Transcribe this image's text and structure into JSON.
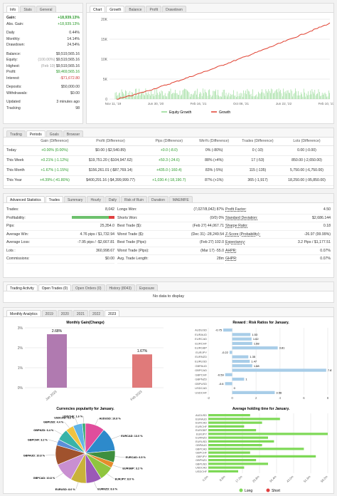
{
  "info": {
    "tabs": [
      "Info",
      "Stats",
      "General"
    ],
    "gain_label": "Gain:",
    "gain": "+18,939.13%",
    "abs_label": "Abs. Gain:",
    "abs": "+18,939.13%",
    "daily_label": "Daily",
    "daily": "0.44%",
    "monthly_label": "Monthly:",
    "monthly": "14.14%",
    "drawdown_label": "Drawdown:",
    "drawdown": "24.54%",
    "balance_label": "Balance:",
    "balance": "$9,519,565.16",
    "equity_label": "Equity:",
    "equity_note": "(100.00%)",
    "equity": "$9,519,565.16",
    "highest_label": "Highest:",
    "highest_note": "(Feb 10)",
    "highest": "$9,519,565.16",
    "profit_label": "Profit:",
    "profit": "$9,469,565.16",
    "interest_label": "Interest:",
    "interest": "-$71,672.80",
    "deposits_label": "Deposits:",
    "deposits": "$50,000.00",
    "withdrawals_label": "Withdrawals:",
    "withdrawals": "$0.00",
    "updated_label": "Updated",
    "updated": "3 minutes ago",
    "tracking_label": "Tracking",
    "tracking": "98"
  },
  "chart": {
    "tabs": [
      "Chart",
      "Growth",
      "Balance",
      "Profit",
      "Drawdown"
    ],
    "y_ticks": [
      "20K",
      "15K",
      "10K",
      "5K",
      "0"
    ],
    "x_ticks": [
      "Nov 11, '19",
      "Jun 30, '20",
      "Feb 16, '21",
      "Oct 06, '21",
      "Jun 22, '22",
      "Feb 10, '23"
    ],
    "legend_equity": "Equity Growth",
    "legend_growth": "Growth",
    "color_growth": "#e04030",
    "color_bars": "#8fd88f"
  },
  "periods": {
    "tabs": [
      "Trading",
      "Periods",
      "Goals",
      "Browser"
    ],
    "headers": [
      "",
      "Gain (Difference)",
      "Profit (Difference)",
      "Pips (Difference)",
      "Win% (Difference)",
      "Trades (Difference)",
      "Lots (Difference)"
    ],
    "rows": [
      [
        "Today",
        "+0.00% (0.00%)",
        "$0.00 (-$2,540.89)",
        "+0.0 (-8.0)",
        "0% (-80%)",
        "0 (-10)",
        "0.00 (-0.00)"
      ],
      [
        "This Week",
        "+0.21% (-1.12%)",
        "$19,751.20 (-$104,947.62)",
        "+50.3 (-24.6)",
        "88% (+4%)",
        "17 (-53)",
        "850.00 (-2,650.00)"
      ],
      [
        "This Month",
        "+1.67% (-1.15%)",
        "$156,261.01 (-$87,769.14)",
        "+435.0 (-160.4)",
        "83% (-5%)",
        "115 (-135)",
        "5,750.00 (-6,750.00)"
      ],
      [
        "This Year",
        "+4.39% (-41.80%)",
        "$400,291.16 (-$4,399,999.77)",
        "+1,030.4 (-18,190.7)",
        "87% (+1%)",
        "365 (-1,917)",
        "18,250.00 (-95,850.00)"
      ]
    ]
  },
  "adv": {
    "tabs": [
      "Advanced Statistics",
      "Trades",
      "Summary",
      "Hourly",
      "Daily",
      "Risk of Ruin",
      "Duration",
      "MAE/MFE"
    ],
    "col1": [
      [
        "Trades:",
        "8,042"
      ],
      [
        "Profitability:",
        ""
      ],
      [
        "Pips:",
        "25,354.0"
      ],
      [
        "Average Win:",
        "4.76 pips / $1,732.94"
      ],
      [
        "Average Loss:",
        "-7.95 pips / -$2,667.81"
      ],
      [
        "Lots :",
        "360,998.67"
      ],
      [
        "Commissions:",
        "$0.00"
      ]
    ],
    "prof_green": 0.87,
    "col2": [
      [
        "Longs Won:",
        "(7,027/8,042) 87%"
      ],
      [
        "Shorts Won:",
        "(0/0) 0%"
      ],
      [
        "Best Trade ($):",
        "(Feb 27) 44,067.71"
      ],
      [
        "Worst Trade ($):",
        "(Dec 31) -28,249.54"
      ],
      [
        "Best Trade (Pips):",
        "(Feb 27) 102.0"
      ],
      [
        "Worst Trade (Pips):",
        "(Mar 17) -55.0"
      ],
      [
        "Avg. Trade Length:",
        "28m"
      ]
    ],
    "col3": [
      [
        "Profit Factor:",
        "4.50"
      ],
      [
        "Standard Deviation:",
        "$2,686.144"
      ],
      [
        "Sharpe Ratio:",
        "0.18"
      ],
      [
        "Z-Score (Probability):",
        "-26.97 (99.99%)"
      ],
      [
        "Expectancy:",
        "3.2 Pips / $1,177.51"
      ],
      [
        "AHPR:",
        "0.07%"
      ],
      [
        "GHPR:",
        "0.07%"
      ]
    ]
  },
  "activity": {
    "tabs": [
      "Trading Activity",
      "Open Trades (0)",
      "Open Orders (0)",
      "History (8043)",
      "Exposure"
    ],
    "empty": "No data to display"
  },
  "monthly": {
    "tabs": [
      "Monthly Analytics",
      "2019",
      "2020",
      "2021",
      "2022",
      "2023"
    ],
    "gain_title": "Monthly Gain(Change)",
    "gain_y": [
      "3%",
      "2%",
      "1%",
      "0%"
    ],
    "gain_cats": [
      "Jan 2023",
      "Feb 2023"
    ],
    "gain_vals": [
      2.68,
      1.67
    ],
    "gain_labels": [
      "2.68%",
      "1.67%"
    ],
    "gain_colors": [
      "#b07ab0",
      "#e07a7a"
    ],
    "risk_title": "Reward : Risk Ratios for January.",
    "risk_pairs": [
      "AUDUSD",
      "EURAUD",
      "EURCAD",
      "EURCHF",
      "EURGBP",
      "EURJPY",
      "EURNZD",
      "EURUSD",
      "GBPAUD",
      "GBPCAD",
      "GBPCHF",
      "GBPNZD",
      "GBPUSD",
      "USDCAD",
      "USDCHF"
    ],
    "risk_vals": [
      -0.75,
      1.53,
      1.62,
      1.68,
      3.81,
      -0.22,
      1.35,
      1.47,
      1.68,
      7.87,
      -0.59,
      1,
      -0.6,
      0,
      3.56
    ],
    "risk_labels": [
      "-0.75",
      "1.53",
      "1.62",
      "1.68",
      "3.81",
      "-0.22",
      "1.35",
      "1.47",
      "1.68",
      "7.87",
      "-0.59",
      "1",
      "-0.6",
      "0",
      "3.56"
    ],
    "risk_x": [
      "-2",
      "0",
      "2",
      "4",
      "6",
      "8"
    ],
    "pie_title": "Currencies popularity for January.",
    "pie_labels": [
      "AUDUSD: 10.8 %",
      "EURCAD: 13.0 %",
      "EURCAD: 6.5 %",
      "EURGBP: 3.2 %",
      "EURJPY: 8.0 %",
      "EURNZD: 8.6 %",
      "EURUSD: 8.6 %",
      "GBPCAD: 10.8 %",
      "GBPAUD: 10.8 %",
      "GBPCHF: 3.2 %",
      "GBPNZD: 6.4 %",
      "GBPUSD: 4.4 %",
      "USDCAD: 5.2 %",
      "USDCHF: 1.6 %"
    ],
    "pie_vals": [
      10.8,
      13.0,
      6.5,
      3.2,
      8.0,
      8.6,
      8.6,
      10.8,
      10.8,
      3.2,
      6.4,
      4.4,
      5.2,
      1.6
    ],
    "pie_colors": [
      "#e04d9c",
      "#2d8acb",
      "#3e8f3e",
      "#e58c2b",
      "#8fc53f",
      "#9b59b6",
      "#c9b23a",
      "#c98fd1",
      "#a0522d",
      "#5a8fd8",
      "#38b3a8",
      "#f0c341",
      "#5fb3e6",
      "#2ea86b"
    ],
    "hold_title": "Average holding time for January.",
    "hold_pairs": [
      "AUDUSD",
      "EURAUD",
      "EURCAD",
      "EURCHF",
      "EURGBP",
      "EURJPY",
      "EURNZD",
      "EURUSD",
      "GBPAUD",
      "GBPCAD",
      "GBPCHF",
      "GBPJPY",
      "GBPNZD",
      "GBPUSD",
      "USDCAD",
      "USDCHF"
    ],
    "hold_long": [
      0.35,
      0.6,
      0.45,
      0.3,
      0.4,
      1.0,
      0.5,
      0.55,
      0.45,
      0.8,
      0.35,
      0.9,
      0.4,
      0.5,
      0.3,
      0.25
    ],
    "hold_x": [
      "0.0m",
      "8.6m",
      "17.2m",
      "25.8m",
      "34.4m",
      "43.0m",
      "51.6m",
      "58.2m"
    ],
    "legend_long": "Long",
    "legend_short": "Short",
    "color_long": "#7ed957",
    "color_short": "#e04040"
  }
}
